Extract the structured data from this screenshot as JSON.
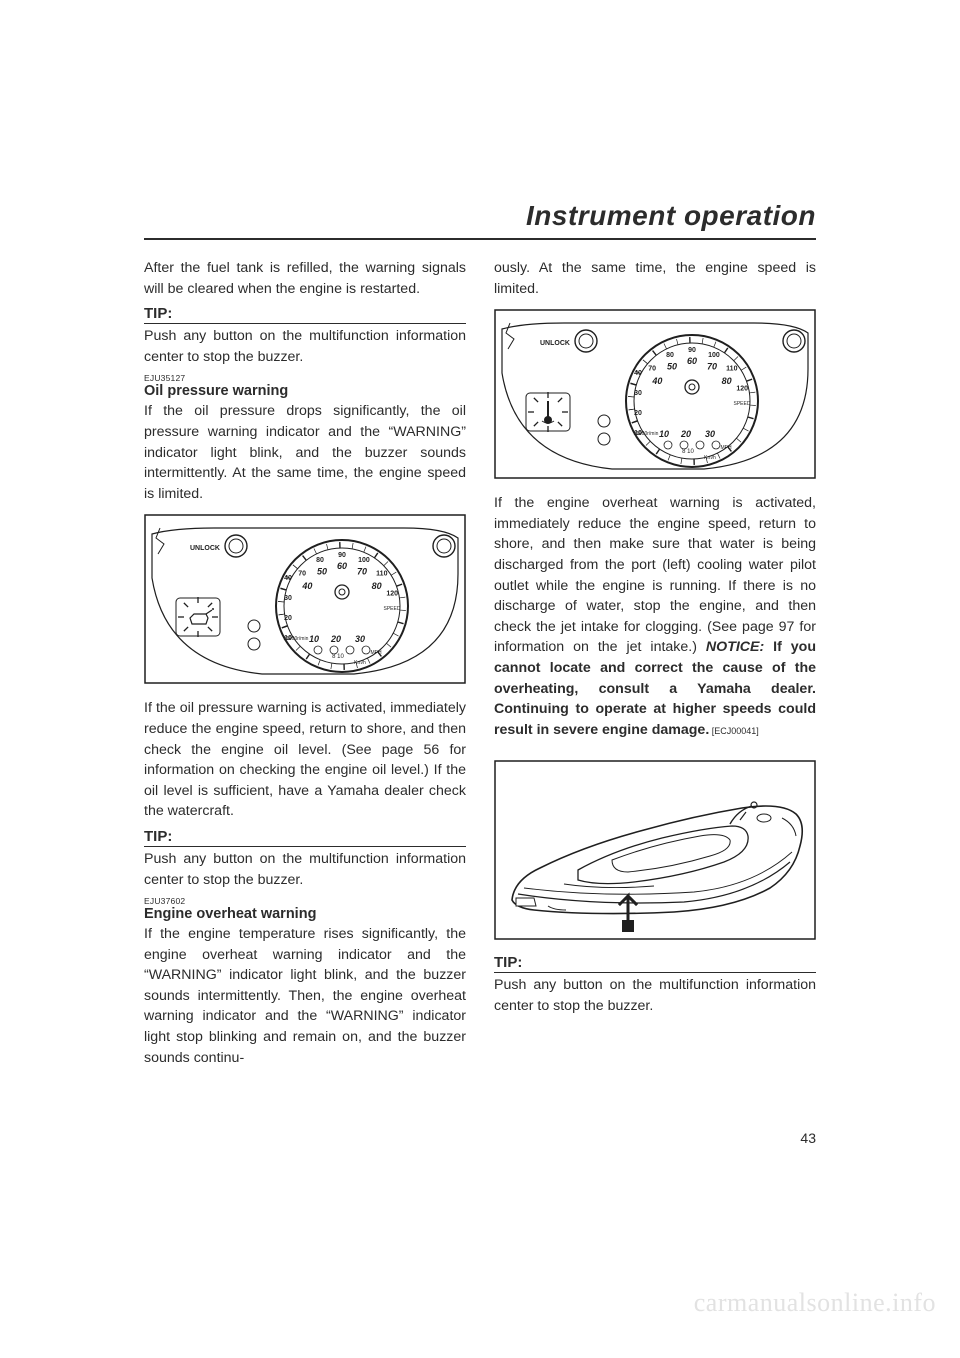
{
  "header": {
    "title": "Instrument operation"
  },
  "page_number": "43",
  "watermark": "carmanualsonline.info",
  "left": {
    "p1": "After the fuel tank is refilled, the warning signals will be cleared when the engine is restarted.",
    "tip1_label": "TIP:",
    "tip1_text": "Push any button on the multifunction information center to stop the buzzer.",
    "ref1": "EJU35127",
    "h1": "Oil pressure warning",
    "p2": "If the oil pressure drops significantly, the oil pressure warning indicator and the “WARNING” indicator light blink, and the buzzer sounds intermittently. At the same time, the engine speed is limited.",
    "p3": "If the oil pressure warning is activated, immediately reduce the engine speed, return to shore, and then check the engine oil level. (See page 56 for information on checking the engine oil level.) If the oil level is sufficient, have a Yamaha dealer check the watercraft.",
    "tip2_label": "TIP:",
    "tip2_text": "Push any button on the multifunction information center to stop the buzzer.",
    "ref2": "EJU37602",
    "h2": "Engine overheat warning",
    "p4": "If the engine temperature rises significantly, the engine overheat warning indicator and the “WARNING” indicator light blink, and the buzzer sounds intermittently. Then, the engine overheat warning indicator and the “WARNING” indicator light stop blinking and remain on, and the buzzer sounds continu-"
  },
  "right": {
    "p1": "ously. At the same time, the engine speed is limited.",
    "p2a": "If the engine overheat warning is activated, immediately reduce the engine speed, return to shore, and then make sure that water is being discharged from the port (left) cooling water pilot outlet while the engine is running. If there is no discharge of water, stop the engine, and then check the jet intake for clogging. (See page 97 for information on the jet intake.) ",
    "notice_label": "NOTICE:",
    "p2b": " If you cannot locate and correct the cause of the overheating, consult a Yamaha dealer. Continuing to operate at higher speeds could result in severe engine damage.",
    "p2_ref": " [ECJ00041]",
    "tip_label": "TIP:",
    "tip_text": "Push any button on the multifunction information center to stop the buzzer."
  },
  "gauge": {
    "unlock_label": "UNLOCK",
    "outer_numbers": [
      "70",
      "80",
      "90",
      "100",
      "110",
      "120"
    ],
    "inner_italic": [
      "40",
      "50",
      "60",
      "70",
      "80"
    ],
    "inner_small": [
      "50",
      "60"
    ],
    "left_numbers": [
      "40",
      "30",
      "20",
      "10"
    ],
    "bottom_italic": [
      "10",
      "20",
      "30"
    ],
    "bottom_small": [
      "8",
      "10"
    ],
    "side_labels": [
      "RPM",
      "SPEED",
      "MPH",
      "Km/h"
    ],
    "colors": {
      "stroke": "#1f1f1f",
      "fill_bg": "#ffffff"
    }
  },
  "jetski": {
    "colors": {
      "stroke": "#1f1f1f",
      "fill": "#ffffff",
      "arrow": "#1f1f1f"
    }
  }
}
